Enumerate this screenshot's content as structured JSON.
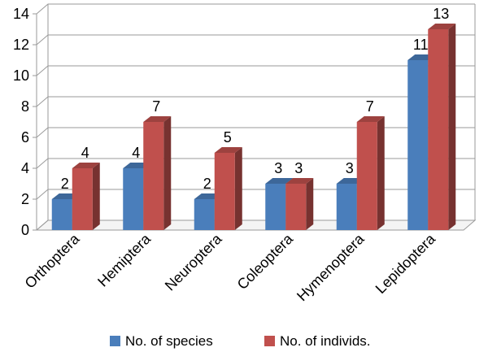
{
  "chart_data": {
    "type": "bar",
    "style": "3d-clustered-column",
    "title": "",
    "xlabel": "",
    "ylabel": "",
    "ylim": [
      0,
      14
    ],
    "yticks": [
      0,
      2,
      4,
      6,
      8,
      10,
      12,
      14
    ],
    "grid": true,
    "categories": [
      "Orthoptera",
      "Hemiptera",
      "Neuroptera",
      "Coleoptera",
      "Hymenoptera",
      "Lepidoptera"
    ],
    "series": [
      {
        "name": "No. of species",
        "color": "#4A7EBB",
        "values": [
          2,
          4,
          2,
          3,
          3,
          11
        ]
      },
      {
        "name": "No. of individs.",
        "color": "#C0504D",
        "values": [
          4,
          7,
          5,
          3,
          7,
          13
        ]
      }
    ],
    "legend_position": "bottom"
  }
}
